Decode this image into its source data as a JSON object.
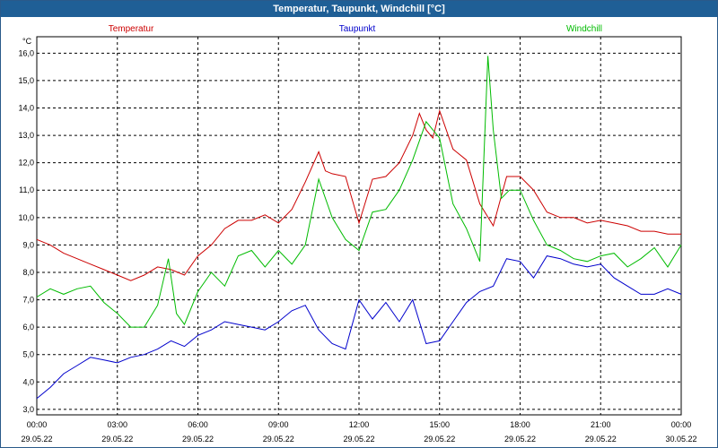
{
  "window": {
    "title": "Temperatur, Taupunkt, Windchill [°C]"
  },
  "chart_data": {
    "type": "line",
    "title": "Temperatur, Taupunkt, Windchill [°C]",
    "ylabel": "°C",
    "xlabel": "",
    "ylim": [
      2.8,
      16.6
    ],
    "xlim": [
      0,
      24
    ],
    "grid": true,
    "yticks": [
      "3,0",
      "4,0",
      "5,0",
      "6,0",
      "7,0",
      "8,0",
      "9,0",
      "10,0",
      "11,0",
      "12,0",
      "13,0",
      "14,0",
      "15,0",
      "16,0"
    ],
    "xticks": [
      {
        "time": "00:00",
        "date": "29.05.22"
      },
      {
        "time": "03:00",
        "date": "29.05.22"
      },
      {
        "time": "06:00",
        "date": "29.05.22"
      },
      {
        "time": "09:00",
        "date": "29.05.22"
      },
      {
        "time": "12:00",
        "date": "29.05.22"
      },
      {
        "time": "15:00",
        "date": "29.05.22"
      },
      {
        "time": "18:00",
        "date": "29.05.22"
      },
      {
        "time": "21:00",
        "date": "29.05.22"
      },
      {
        "time": "00:00",
        "date": "30.05.22"
      }
    ],
    "series": [
      {
        "name": "Temperatur",
        "color": "#cc0000",
        "x": [
          0,
          0.5,
          1,
          1.5,
          2,
          2.5,
          3,
          3.5,
          4,
          4.5,
          5,
          5.5,
          6,
          6.5,
          7,
          7.5,
          8,
          8.5,
          9,
          9.5,
          10,
          10.5,
          10.75,
          11,
          11.5,
          12,
          12.5,
          13,
          13.5,
          14,
          14.25,
          14.5,
          14.75,
          15,
          15.5,
          16,
          16.5,
          17,
          17.5,
          18,
          18.5,
          19,
          19.5,
          20,
          20.5,
          21,
          21.5,
          22,
          22.5,
          23,
          23.5,
          24
        ],
        "values": [
          9.2,
          9.0,
          8.7,
          8.5,
          8.3,
          8.1,
          7.9,
          7.7,
          7.9,
          8.2,
          8.1,
          7.9,
          8.6,
          9.0,
          9.6,
          9.9,
          9.9,
          10.1,
          9.8,
          10.3,
          11.3,
          12.4,
          11.7,
          11.6,
          11.5,
          9.8,
          11.4,
          11.5,
          12.0,
          13.0,
          13.8,
          13.2,
          12.9,
          13.9,
          12.5,
          12.1,
          10.5,
          9.7,
          11.5,
          11.5,
          11.0,
          10.2,
          10.0,
          10.0,
          9.8,
          9.9,
          9.8,
          9.7,
          9.5,
          9.5,
          9.4,
          9.4
        ]
      },
      {
        "name": "Taupunkt",
        "color": "#0000cc",
        "x": [
          0,
          0.5,
          1,
          1.5,
          2,
          2.5,
          3,
          3.5,
          4,
          4.5,
          5,
          5.5,
          6,
          6.5,
          7,
          7.5,
          8,
          8.5,
          9,
          9.5,
          10,
          10.5,
          11,
          11.5,
          12,
          12.5,
          13,
          13.5,
          14,
          14.5,
          15,
          15.5,
          16,
          16.5,
          17,
          17.5,
          18,
          18.5,
          19,
          19.5,
          20,
          20.5,
          21,
          21.5,
          22,
          22.5,
          23,
          23.5,
          24
        ],
        "values": [
          3.4,
          3.8,
          4.3,
          4.6,
          4.9,
          4.8,
          4.7,
          4.9,
          5.0,
          5.2,
          5.5,
          5.3,
          5.7,
          5.9,
          6.2,
          6.1,
          6.0,
          5.9,
          6.2,
          6.6,
          6.8,
          5.9,
          5.4,
          5.2,
          7.0,
          6.3,
          6.9,
          6.2,
          7.0,
          5.4,
          5.5,
          6.2,
          6.9,
          7.3,
          7.5,
          8.5,
          8.4,
          7.8,
          8.6,
          8.5,
          8.3,
          8.2,
          8.3,
          7.8,
          7.5,
          7.2,
          7.2,
          7.4,
          7.2
        ]
      },
      {
        "name": "Windchill",
        "color": "#00bb00",
        "x": [
          0,
          0.5,
          1,
          1.5,
          2,
          2.5,
          3,
          3.5,
          4,
          4.5,
          4.9,
          5.2,
          5.5,
          6,
          6.5,
          7,
          7.5,
          8,
          8.5,
          9,
          9.5,
          10,
          10.5,
          11,
          11.5,
          12,
          12.5,
          13,
          13.5,
          14,
          14.5,
          15,
          15.5,
          16,
          16.5,
          16.8,
          17,
          17.3,
          17.6,
          18,
          18.5,
          19,
          19.5,
          20,
          20.5,
          21,
          21.5,
          22,
          22.5,
          23,
          23.5,
          24
        ],
        "values": [
          7.1,
          7.4,
          7.2,
          7.4,
          7.5,
          6.9,
          6.5,
          6.0,
          6.0,
          6.8,
          8.5,
          6.5,
          6.1,
          7.3,
          8.0,
          7.5,
          8.6,
          8.8,
          8.2,
          8.8,
          8.3,
          9.0,
          11.4,
          10.0,
          9.2,
          8.8,
          10.2,
          10.3,
          11.0,
          12.1,
          13.5,
          12.9,
          10.5,
          9.6,
          8.4,
          15.9,
          13.2,
          10.7,
          11.0,
          11.0,
          9.9,
          9.0,
          8.8,
          8.5,
          8.4,
          8.6,
          8.7,
          8.2,
          8.5,
          8.9,
          8.2,
          9.0
        ]
      }
    ]
  }
}
